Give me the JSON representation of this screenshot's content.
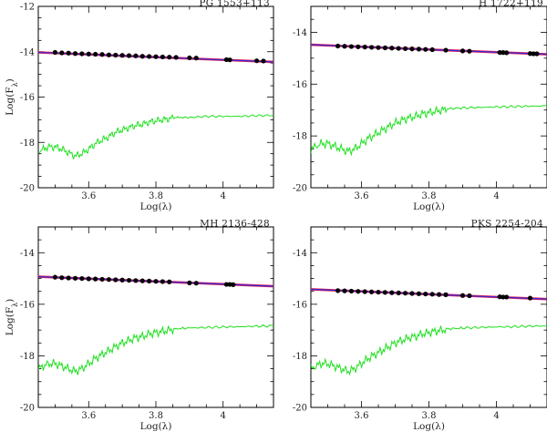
{
  "chart_data": [
    {
      "type": "scatter",
      "title": "PG 1553+113",
      "xlabel": "Log(λ)",
      "ylabel": "Log(F_λ)",
      "xlim": [
        3.45,
        4.15
      ],
      "ylim": [
        -20,
        -12
      ],
      "xticks": [
        3.6,
        3.8,
        4
      ],
      "xtick_labels": [
        "3.6",
        "3.8",
        "4"
      ],
      "yticks": [
        -20,
        -18,
        -16,
        -14,
        -12
      ],
      "ytick_labels": [
        "-20",
        "-18",
        "-16",
        "-14",
        "-12"
      ],
      "show_x_ticklabels": true,
      "show_xlabel": true,
      "fit_line": {
        "x": [
          3.45,
          4.15
        ],
        "y": [
          -14.03,
          -14.45
        ]
      },
      "photometry": {
        "x": [
          3.5,
          3.52,
          3.54,
          3.56,
          3.58,
          3.6,
          3.62,
          3.64,
          3.66,
          3.68,
          3.7,
          3.72,
          3.74,
          3.76,
          3.78,
          3.8,
          3.82,
          3.84,
          3.86,
          3.9,
          3.92,
          4.01,
          4.02,
          4.1,
          4.12
        ],
        "y": [
          -14.03,
          -14.05,
          -14.06,
          -14.08,
          -14.09,
          -14.1,
          -14.11,
          -14.12,
          -14.14,
          -14.15,
          -14.16,
          -14.17,
          -14.18,
          -14.2,
          -14.21,
          -14.22,
          -14.23,
          -14.24,
          -14.25,
          -14.27,
          -14.28,
          -14.35,
          -14.36,
          -14.4,
          -14.41
        ]
      },
      "host_template": {
        "x": [
          3.45,
          3.48,
          3.5,
          3.52,
          3.54,
          3.56,
          3.58,
          3.6,
          3.62,
          3.64,
          3.66,
          3.68,
          3.7,
          3.72,
          3.74,
          3.76,
          3.78,
          3.8,
          3.82,
          3.84,
          3.86,
          3.9,
          3.95,
          4.0,
          4.05,
          4.1,
          4.15
        ],
        "y": [
          -18.4,
          -18.2,
          -18.2,
          -18.3,
          -18.45,
          -18.6,
          -18.5,
          -18.3,
          -18.05,
          -17.9,
          -17.75,
          -17.55,
          -17.45,
          -17.35,
          -17.25,
          -17.2,
          -17.1,
          -17.05,
          -17.0,
          -16.95,
          -16.9,
          -16.9,
          -16.85,
          -16.85,
          -16.85,
          -16.82,
          -16.8
        ]
      },
      "grid": false
    },
    {
      "type": "scatter",
      "title": "H 1722+119",
      "xlabel": "Log(λ)",
      "ylabel": "",
      "xlim": [
        3.45,
        4.15
      ],
      "ylim": [
        -20,
        -13
      ],
      "xticks": [
        3.6,
        3.8,
        4
      ],
      "xtick_labels": [
        "3.6",
        "3.8",
        "4"
      ],
      "yticks": [
        -20,
        -18,
        -16,
        -14
      ],
      "ytick_labels": [
        "-20",
        "-18",
        "-16",
        "-14"
      ],
      "show_x_ticklabels": true,
      "show_xlabel": true,
      "fit_line": {
        "x": [
          3.45,
          4.15
        ],
        "y": [
          -14.48,
          -14.85
        ]
      },
      "photometry": {
        "x": [
          3.53,
          3.55,
          3.57,
          3.59,
          3.61,
          3.63,
          3.65,
          3.67,
          3.69,
          3.71,
          3.73,
          3.75,
          3.77,
          3.79,
          3.81,
          3.85,
          3.9,
          3.92,
          4.01,
          4.02,
          4.03,
          4.1,
          4.11,
          4.12
        ],
        "y": [
          -14.53,
          -14.54,
          -14.55,
          -14.56,
          -14.57,
          -14.58,
          -14.59,
          -14.6,
          -14.61,
          -14.62,
          -14.63,
          -14.64,
          -14.65,
          -14.66,
          -14.67,
          -14.69,
          -14.72,
          -14.73,
          -14.78,
          -14.78,
          -14.79,
          -14.82,
          -14.83,
          -14.83
        ]
      },
      "host_template": {
        "x": [
          3.45,
          3.48,
          3.5,
          3.52,
          3.54,
          3.56,
          3.58,
          3.6,
          3.62,
          3.64,
          3.66,
          3.68,
          3.7,
          3.72,
          3.74,
          3.76,
          3.78,
          3.8,
          3.82,
          3.84,
          3.86,
          3.9,
          3.95,
          4.0,
          4.05,
          4.1,
          4.15
        ],
        "y": [
          -18.5,
          -18.3,
          -18.3,
          -18.4,
          -18.5,
          -18.6,
          -18.5,
          -18.3,
          -18.1,
          -17.95,
          -17.8,
          -17.65,
          -17.5,
          -17.4,
          -17.3,
          -17.25,
          -17.15,
          -17.1,
          -17.05,
          -17.0,
          -16.95,
          -16.92,
          -16.9,
          -16.88,
          -16.87,
          -16.85,
          -16.84
        ]
      },
      "grid": false
    },
    {
      "type": "scatter",
      "title": "MH 2136-428",
      "xlabel": "Log(λ)",
      "ylabel": "Log(F_λ)",
      "xlim": [
        3.45,
        4.15
      ],
      "ylim": [
        -20,
        -13
      ],
      "xticks": [
        3.6,
        3.8,
        4
      ],
      "xtick_labels": [
        "3.6",
        "3.8",
        "4"
      ],
      "yticks": [
        -20,
        -18,
        -16,
        -14
      ],
      "ytick_labels": [
        "-20",
        "-18",
        "-16",
        "-14"
      ],
      "show_x_ticklabels": true,
      "show_xlabel": true,
      "fit_line": {
        "x": [
          3.45,
          4.15
        ],
        "y": [
          -14.93,
          -15.3
        ]
      },
      "photometry": {
        "x": [
          3.5,
          3.52,
          3.54,
          3.56,
          3.58,
          3.6,
          3.62,
          3.64,
          3.66,
          3.68,
          3.7,
          3.72,
          3.74,
          3.76,
          3.78,
          3.8,
          3.82,
          3.84,
          3.9,
          3.92,
          4.01,
          4.02,
          4.03
        ],
        "y": [
          -14.95,
          -14.97,
          -14.98,
          -14.99,
          -15.0,
          -15.01,
          -15.02,
          -15.03,
          -15.04,
          -15.05,
          -15.06,
          -15.07,
          -15.08,
          -15.09,
          -15.1,
          -15.11,
          -15.12,
          -15.13,
          -15.17,
          -15.18,
          -15.23,
          -15.23,
          -15.24
        ]
      },
      "host_template": {
        "x": [
          3.45,
          3.48,
          3.5,
          3.52,
          3.54,
          3.56,
          3.58,
          3.6,
          3.62,
          3.64,
          3.66,
          3.68,
          3.7,
          3.72,
          3.74,
          3.76,
          3.78,
          3.8,
          3.82,
          3.84,
          3.86,
          3.9,
          3.95,
          4.0,
          4.05,
          4.1,
          4.15
        ],
        "y": [
          -18.5,
          -18.3,
          -18.3,
          -18.4,
          -18.5,
          -18.6,
          -18.5,
          -18.3,
          -18.1,
          -17.95,
          -17.8,
          -17.65,
          -17.5,
          -17.4,
          -17.3,
          -17.25,
          -17.15,
          -17.1,
          -17.05,
          -17.0,
          -16.95,
          -16.92,
          -16.9,
          -16.88,
          -16.87,
          -16.85,
          -16.84
        ]
      },
      "grid": false
    },
    {
      "type": "scatter",
      "title": "PKS 2254-204",
      "xlabel": "Log(λ)",
      "ylabel": "",
      "xlim": [
        3.45,
        4.15
      ],
      "ylim": [
        -20,
        -13
      ],
      "xticks": [
        3.6,
        3.8,
        4
      ],
      "xtick_labels": [
        "3.6",
        "3.8",
        "4"
      ],
      "yticks": [
        -20,
        -18,
        -16,
        -14
      ],
      "ytick_labels": [
        "-20",
        "-18",
        "-16",
        "-14"
      ],
      "show_x_ticklabels": true,
      "show_xlabel": true,
      "fit_line": {
        "x": [
          3.45,
          4.15
        ],
        "y": [
          -15.42,
          -15.8
        ]
      },
      "photometry": {
        "x": [
          3.53,
          3.55,
          3.57,
          3.59,
          3.61,
          3.63,
          3.65,
          3.67,
          3.69,
          3.71,
          3.73,
          3.75,
          3.77,
          3.79,
          3.81,
          3.83,
          3.85,
          3.9,
          3.92,
          4.01,
          4.02,
          4.03,
          4.1
        ],
        "y": [
          -15.47,
          -15.48,
          -15.49,
          -15.5,
          -15.51,
          -15.52,
          -15.53,
          -15.54,
          -15.55,
          -15.56,
          -15.57,
          -15.58,
          -15.59,
          -15.6,
          -15.61,
          -15.62,
          -15.63,
          -15.66,
          -15.67,
          -15.71,
          -15.72,
          -15.72,
          -15.76
        ]
      },
      "host_template": {
        "x": [
          3.45,
          3.48,
          3.5,
          3.52,
          3.54,
          3.56,
          3.58,
          3.6,
          3.62,
          3.64,
          3.66,
          3.68,
          3.7,
          3.72,
          3.74,
          3.76,
          3.78,
          3.8,
          3.82,
          3.84,
          3.86,
          3.9,
          3.95,
          4.0,
          4.05,
          4.1,
          4.15
        ],
        "y": [
          -18.5,
          -18.3,
          -18.3,
          -18.4,
          -18.5,
          -18.6,
          -18.5,
          -18.3,
          -18.1,
          -17.95,
          -17.8,
          -17.65,
          -17.5,
          -17.4,
          -17.3,
          -17.25,
          -17.15,
          -17.1,
          -17.05,
          -17.0,
          -16.95,
          -16.92,
          -16.9,
          -16.88,
          -16.87,
          -16.85,
          -16.84
        ]
      },
      "grid": false
    }
  ],
  "colors": {
    "axes": "#000000",
    "fit_line_outer": "#e0205a",
    "fit_line_inner": "#2a2ad8",
    "points": "#000000",
    "host_template": "#1fe01f"
  }
}
